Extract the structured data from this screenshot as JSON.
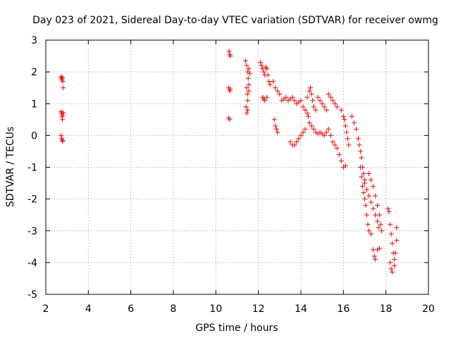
{
  "chart_data": {
    "type": "scatter",
    "title": "Day 023 of 2021, Sidereal Day-to-day VTEC variation (SDTVAR) for receiver owmg",
    "xlabel": "GPS time / hours",
    "ylabel": "SDTVAR / TECUs",
    "xlim": [
      2,
      20
    ],
    "ylim": [
      -5,
      3
    ],
    "xticks": [
      "2",
      "4",
      "6",
      "8",
      "10",
      "12",
      "14",
      "16",
      "18",
      "20"
    ],
    "yticks": [
      "3",
      "2",
      "1",
      "0",
      "-1",
      "-2",
      "-3",
      "-4",
      "-5"
    ],
    "grid": true,
    "marker": "+",
    "series_color": "#ff0000",
    "series": [
      {
        "name": "SDTVAR",
        "points": [
          [
            2.72,
            1.85
          ],
          [
            2.74,
            1.8
          ],
          [
            2.76,
            1.75
          ],
          [
            2.78,
            1.82
          ],
          [
            2.8,
            1.7
          ],
          [
            2.82,
            1.5
          ],
          [
            2.72,
            0.75
          ],
          [
            2.74,
            0.7
          ],
          [
            2.76,
            0.6
          ],
          [
            2.78,
            0.5
          ],
          [
            2.8,
            0.65
          ],
          [
            2.82,
            0.72
          ],
          [
            2.72,
            0.0
          ],
          [
            2.75,
            -0.1
          ],
          [
            2.78,
            -0.15
          ],
          [
            2.8,
            -0.18
          ],
          [
            10.62,
            2.65
          ],
          [
            10.65,
            2.55
          ],
          [
            10.68,
            2.5
          ],
          [
            10.6,
            1.5
          ],
          [
            10.65,
            1.4
          ],
          [
            10.68,
            1.45
          ],
          [
            10.6,
            0.55
          ],
          [
            10.65,
            0.5
          ],
          [
            11.4,
            2.35
          ],
          [
            11.45,
            2.2
          ],
          [
            11.5,
            2.0
          ],
          [
            11.52,
            1.8
          ],
          [
            11.55,
            1.6
          ],
          [
            11.45,
            1.5
          ],
          [
            11.48,
            1.3
          ],
          [
            11.5,
            1.1
          ],
          [
            11.42,
            0.9
          ],
          [
            11.45,
            0.7
          ],
          [
            11.5,
            0.8
          ],
          [
            11.55,
            1.4
          ],
          [
            11.55,
            2.1
          ],
          [
            11.6,
            1.95
          ],
          [
            12.1,
            2.3
          ],
          [
            12.15,
            2.2
          ],
          [
            12.2,
            2.1
          ],
          [
            12.25,
            2.0
          ],
          [
            12.3,
            1.9
          ],
          [
            12.35,
            2.15
          ],
          [
            12.4,
            2.1
          ],
          [
            12.45,
            1.9
          ],
          [
            12.5,
            1.7
          ],
          [
            12.55,
            1.6
          ],
          [
            12.2,
            1.2
          ],
          [
            12.25,
            1.15
          ],
          [
            12.3,
            1.1
          ],
          [
            12.4,
            1.2
          ],
          [
            12.7,
            1.7
          ],
          [
            12.8,
            1.5
          ],
          [
            12.9,
            1.4
          ],
          [
            13.0,
            1.3
          ],
          [
            12.75,
            0.5
          ],
          [
            12.8,
            0.3
          ],
          [
            12.85,
            0.2
          ],
          [
            12.9,
            0.1
          ],
          [
            13.1,
            1.1
          ],
          [
            13.2,
            1.15
          ],
          [
            13.3,
            1.2
          ],
          [
            13.4,
            1.1
          ],
          [
            13.5,
            1.15
          ],
          [
            13.6,
            1.2
          ],
          [
            13.7,
            1.1
          ],
          [
            13.8,
            1.0
          ],
          [
            13.9,
            1.05
          ],
          [
            13.5,
            -0.2
          ],
          [
            13.6,
            -0.3
          ],
          [
            13.7,
            -0.3
          ],
          [
            13.8,
            -0.2
          ],
          [
            13.9,
            -0.1
          ],
          [
            14.0,
            0.0
          ],
          [
            14.1,
            0.1
          ],
          [
            14.2,
            0.2
          ],
          [
            14.0,
            1.1
          ],
          [
            14.1,
            0.9
          ],
          [
            14.2,
            0.8
          ],
          [
            14.3,
            0.7
          ],
          [
            14.35,
            0.6
          ],
          [
            14.3,
            1.2
          ],
          [
            14.4,
            1.4
          ],
          [
            14.45,
            1.5
          ],
          [
            14.5,
            1.3
          ],
          [
            14.55,
            1.1
          ],
          [
            14.6,
            0.9
          ],
          [
            14.7,
            0.8
          ],
          [
            14.4,
            0.4
          ],
          [
            14.5,
            0.3
          ],
          [
            14.6,
            0.2
          ],
          [
            14.7,
            0.1
          ],
          [
            14.8,
            0.05
          ],
          [
            14.9,
            0.1
          ],
          [
            15.0,
            0.05
          ],
          [
            15.1,
            0.0
          ],
          [
            15.2,
            0.1
          ],
          [
            15.3,
            0.2
          ],
          [
            14.8,
            1.2
          ],
          [
            14.9,
            1.1
          ],
          [
            15.0,
            1.0
          ],
          [
            15.1,
            0.9
          ],
          [
            15.2,
            0.8
          ],
          [
            15.3,
            1.3
          ],
          [
            15.4,
            1.2
          ],
          [
            15.5,
            1.1
          ],
          [
            15.6,
            1.0
          ],
          [
            15.7,
            0.9
          ],
          [
            15.4,
            0.0
          ],
          [
            15.5,
            -0.2
          ],
          [
            15.6,
            -0.3
          ],
          [
            15.7,
            -0.4
          ],
          [
            15.8,
            -0.6
          ],
          [
            15.9,
            -0.8
          ],
          [
            16.0,
            -1.0
          ],
          [
            16.1,
            -0.95
          ],
          [
            15.9,
            0.8
          ],
          [
            16.0,
            0.6
          ],
          [
            16.05,
            0.5
          ],
          [
            16.1,
            0.3
          ],
          [
            16.15,
            0.1
          ],
          [
            16.2,
            -0.1
          ],
          [
            16.25,
            -0.3
          ],
          [
            16.4,
            0.6
          ],
          [
            16.5,
            0.4
          ],
          [
            16.6,
            0.2
          ],
          [
            16.7,
            -0.1
          ],
          [
            16.75,
            -0.3
          ],
          [
            16.8,
            -0.5
          ],
          [
            16.85,
            -0.7
          ],
          [
            16.9,
            -1.0
          ],
          [
            16.95,
            -1.2
          ],
          [
            17.0,
            -1.4
          ],
          [
            16.8,
            -1.0
          ],
          [
            16.85,
            -1.3
          ],
          [
            16.9,
            -1.6
          ],
          [
            16.95,
            -1.8
          ],
          [
            17.0,
            -2.0
          ],
          [
            17.05,
            -2.2
          ],
          [
            17.1,
            -2.5
          ],
          [
            17.15,
            -2.8
          ],
          [
            17.2,
            -3.0
          ],
          [
            17.3,
            -3.1
          ],
          [
            17.0,
            -1.5
          ],
          [
            17.1,
            -1.7
          ],
          [
            17.2,
            -1.9
          ],
          [
            17.3,
            -2.1
          ],
          [
            17.4,
            -2.3
          ],
          [
            17.5,
            -2.5
          ],
          [
            17.6,
            -2.7
          ],
          [
            17.65,
            -2.9
          ],
          [
            17.2,
            -1.2
          ],
          [
            17.3,
            -1.4
          ],
          [
            17.4,
            -1.6
          ],
          [
            17.5,
            -1.9
          ],
          [
            17.6,
            -2.2
          ],
          [
            17.7,
            -2.5
          ],
          [
            17.75,
            -2.8
          ],
          [
            17.8,
            -3.0
          ],
          [
            17.4,
            -3.6
          ],
          [
            17.45,
            -3.8
          ],
          [
            17.5,
            -3.9
          ],
          [
            17.6,
            -3.6
          ],
          [
            17.7,
            -3.55
          ],
          [
            18.1,
            -2.3
          ],
          [
            18.15,
            -2.4
          ],
          [
            18.2,
            -2.8
          ],
          [
            18.25,
            -3.1
          ],
          [
            18.3,
            -3.4
          ],
          [
            18.35,
            -3.7
          ],
          [
            18.4,
            -3.9
          ],
          [
            18.2,
            -4.0
          ],
          [
            18.25,
            -4.2
          ],
          [
            18.3,
            -4.3
          ],
          [
            18.4,
            -4.1
          ],
          [
            18.45,
            -3.7
          ],
          [
            18.5,
            -3.3
          ],
          [
            18.5,
            -2.9
          ]
        ]
      }
    ]
  }
}
